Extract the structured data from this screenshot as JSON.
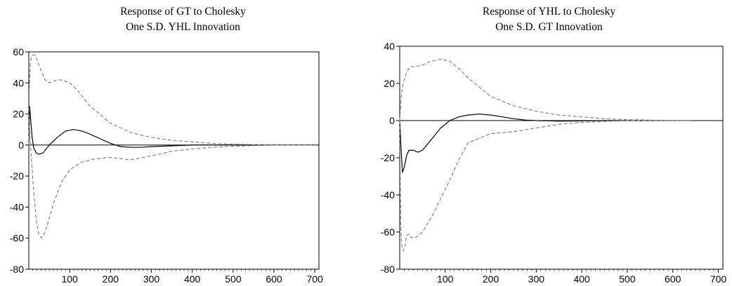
{
  "chart_data": [
    {
      "type": "line",
      "title_line1": "Response of GT to Cholesky",
      "title_line2": "One S.D. YHL Innovation",
      "xlabel": "",
      "ylabel": "",
      "xlim": [
        0,
        710
      ],
      "ylim": [
        -80,
        60
      ],
      "xticks": [
        100,
        200,
        300,
        400,
        500,
        600,
        700
      ],
      "yticks": [
        60,
        40,
        20,
        0,
        -20,
        -40,
        -60,
        -80
      ],
      "grid": false,
      "zero_line": true,
      "series": [
        {
          "style": "solid",
          "x": [
            0,
            2,
            5,
            8,
            12,
            18,
            25,
            35,
            50,
            70,
            90,
            110,
            130,
            150,
            175,
            200,
            225,
            250,
            275,
            300,
            350,
            400,
            450,
            500,
            600,
            700
          ],
          "y": [
            0,
            25,
            15,
            5,
            -2,
            -5,
            -6,
            -5,
            0,
            5,
            9,
            10,
            9,
            7,
            4,
            1,
            -1,
            -1.5,
            -1.5,
            -1,
            -0.5,
            0,
            0,
            0,
            0,
            0
          ]
        },
        {
          "style": "dashed",
          "x": [
            0,
            1,
            3,
            6,
            10,
            15,
            20,
            30,
            40,
            50,
            60,
            70,
            80,
            90,
            100,
            120,
            150,
            200,
            250,
            300,
            350,
            400,
            450,
            500,
            600,
            700
          ],
          "y": [
            0,
            35,
            50,
            56,
            58,
            58,
            55,
            48,
            42,
            40,
            41,
            42,
            42,
            41,
            40,
            35,
            25,
            14,
            8,
            5,
            3,
            2,
            1,
            0.5,
            0,
            0
          ]
        },
        {
          "style": "dashed",
          "x": [
            0,
            2,
            4,
            8,
            12,
            18,
            25,
            32,
            40,
            50,
            60,
            80,
            100,
            130,
            160,
            200,
            250,
            300,
            350,
            400,
            450,
            500,
            600,
            700
          ],
          "y": [
            0,
            10,
            0,
            -15,
            -30,
            -48,
            -58,
            -60,
            -56,
            -47,
            -38,
            -24,
            -16,
            -11,
            -9,
            -8,
            -9.5,
            -7,
            -4,
            -2.5,
            -1.5,
            -0.8,
            0,
            0
          ]
        }
      ]
    },
    {
      "type": "line",
      "title_line1": "Response of YHL to Cholesky",
      "title_line2": "One S.D. GT Innovation",
      "xlabel": "",
      "ylabel": "",
      "xlim": [
        0,
        710
      ],
      "ylim": [
        -80,
        40
      ],
      "xticks": [
        100,
        200,
        300,
        400,
        500,
        600,
        700
      ],
      "yticks": [
        40,
        20,
        0,
        -20,
        -40,
        -60,
        -80
      ],
      "grid": false,
      "zero_line": true,
      "series": [
        {
          "style": "solid",
          "x": [
            0,
            3,
            6,
            10,
            15,
            20,
            30,
            40,
            50,
            70,
            90,
            110,
            130,
            150,
            175,
            200,
            225,
            250,
            275,
            300,
            350,
            400,
            450,
            500,
            600,
            640
          ],
          "y": [
            0,
            -15,
            -28,
            -25,
            -19,
            -16,
            -16,
            -17,
            -16,
            -10,
            -4,
            0,
            2,
            3,
            3.5,
            3,
            2,
            1,
            0.3,
            0,
            -0.3,
            -0.2,
            0,
            0,
            0,
            0
          ]
        },
        {
          "style": "dashed",
          "x": [
            0,
            3,
            6,
            10,
            15,
            20,
            25,
            35,
            50,
            70,
            90,
            110,
            130,
            150,
            200,
            250,
            300,
            350,
            400,
            450,
            500,
            600,
            640
          ],
          "y": [
            0,
            12,
            18,
            22,
            26,
            28,
            29,
            29,
            30,
            32,
            33,
            32,
            28,
            23,
            13,
            8,
            5,
            3,
            2,
            1,
            0.5,
            0,
            0
          ]
        },
        {
          "style": "dashed",
          "x": [
            0,
            2,
            5,
            8,
            12,
            15,
            20,
            25,
            35,
            50,
            70,
            90,
            110,
            130,
            150,
            200,
            250,
            300,
            350,
            400,
            450,
            500,
            600,
            640
          ],
          "y": [
            0,
            -55,
            -68,
            -70,
            -67,
            -62,
            -61,
            -63,
            -63,
            -60,
            -52,
            -42,
            -32,
            -21,
            -12,
            -7,
            -6,
            -4,
            -2,
            -1,
            -0.5,
            0,
            0,
            0
          ]
        }
      ]
    }
  ]
}
